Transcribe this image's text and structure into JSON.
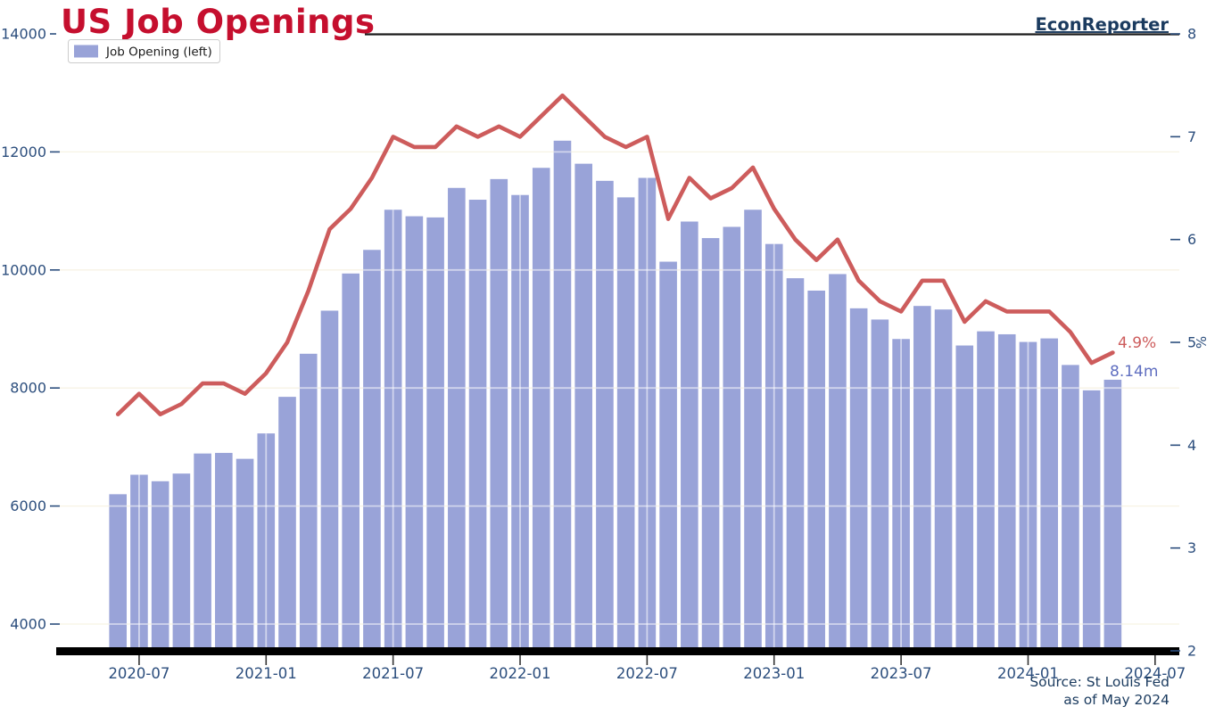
{
  "chart_data": {
    "type": "bar+line",
    "title": "US Job Openings",
    "branding": "EconReporter",
    "legend": [
      {
        "label": "Job Opening (left)",
        "series": "job_openings"
      }
    ],
    "x_tick_labels": [
      "2020-07",
      "2021-01",
      "2021-07",
      "2022-01",
      "2022-07",
      "2023-01",
      "2023-07",
      "2024-01",
      "2024-07"
    ],
    "left_axis": {
      "ticks": [
        4000,
        6000,
        8000,
        10000,
        12000,
        14000
      ],
      "min": 4000,
      "max": 14000
    },
    "right_axis": {
      "ticks": [
        2,
        3,
        4,
        5,
        6,
        7,
        8
      ],
      "min": 2,
      "max": 8,
      "label": "%"
    },
    "months": [
      "2020-06",
      "2020-07",
      "2020-08",
      "2020-09",
      "2020-10",
      "2020-11",
      "2020-12",
      "2021-01",
      "2021-02",
      "2021-03",
      "2021-04",
      "2021-05",
      "2021-06",
      "2021-07",
      "2021-08",
      "2021-09",
      "2021-10",
      "2021-11",
      "2021-12",
      "2022-01",
      "2022-02",
      "2022-03",
      "2022-04",
      "2022-05",
      "2022-06",
      "2022-07",
      "2022-08",
      "2022-09",
      "2022-10",
      "2022-11",
      "2022-12",
      "2023-01",
      "2023-02",
      "2023-03",
      "2023-04",
      "2023-05",
      "2023-06",
      "2023-07",
      "2023-08",
      "2023-09",
      "2023-10",
      "2023-11",
      "2023-12",
      "2024-01",
      "2024-02",
      "2024-03",
      "2024-04",
      "2024-05"
    ],
    "series": [
      {
        "name": "job_openings",
        "type": "bar",
        "axis": "left",
        "unit": "thousands",
        "values": [
          6200,
          6530,
          6420,
          6550,
          6890,
          6900,
          6800,
          7230,
          7850,
          8580,
          9310,
          9940,
          10340,
          11020,
          10910,
          10890,
          11390,
          11190,
          11540,
          11270,
          11730,
          12190,
          11800,
          11510,
          11230,
          11560,
          10140,
          10820,
          10540,
          10730,
          11020,
          10440,
          9860,
          9650,
          9930,
          9350,
          9160,
          8830,
          9390,
          9330,
          8720,
          8960,
          8910,
          8780,
          8840,
          8390,
          7960,
          8140
        ]
      },
      {
        "name": "job_openings_rate",
        "type": "line",
        "axis": "right",
        "unit": "%",
        "values": [
          4.3,
          4.5,
          4.3,
          4.4,
          4.6,
          4.6,
          4.5,
          4.7,
          5.0,
          5.5,
          6.1,
          6.3,
          6.6,
          7.0,
          6.9,
          6.9,
          7.1,
          7.0,
          7.1,
          7.0,
          7.2,
          7.4,
          7.2,
          7.0,
          6.9,
          7.0,
          6.2,
          6.6,
          6.4,
          6.5,
          6.7,
          6.3,
          6.0,
          5.8,
          6.0,
          5.6,
          5.4,
          5.3,
          5.6,
          5.6,
          5.2,
          5.4,
          5.3,
          5.3,
          5.3,
          5.1,
          4.8,
          4.9
        ]
      }
    ],
    "annotations": {
      "line_end": "4.9%",
      "bar_end": "8.14m"
    },
    "source": {
      "line1": "Source: St Louis Fed",
      "line2": "as of May 2024"
    },
    "colors": {
      "background": "#ffffff",
      "title": "#c50f2e",
      "bar": "#99a3d8",
      "line": "#cd5c5c",
      "axis_text": "#2c4e7d",
      "brand": "#1b3b5f",
      "source_text": "#1b3b5f",
      "bar_annotation": "#5f6ec0",
      "grid_bg": "#f7f3e4",
      "grid_on_bars": "#ffffff"
    }
  }
}
